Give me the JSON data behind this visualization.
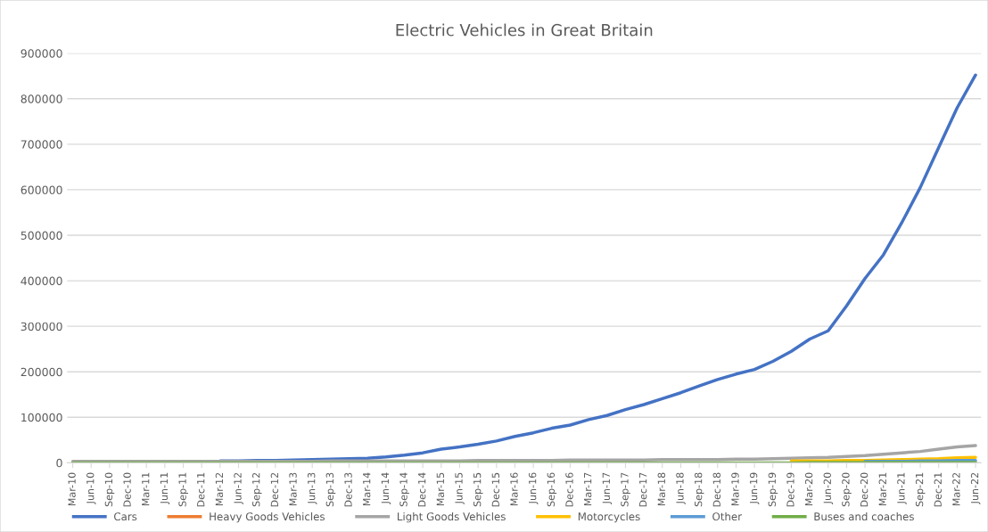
{
  "chart_data": {
    "type": "line",
    "title": "Electric Vehicles in Great Britain",
    "categories": [
      "Mar-10",
      "Jun-10",
      "Sep-10",
      "Dec-10",
      "Mar-11",
      "Jun-11",
      "Sep-11",
      "Dec-11",
      "Mar-12",
      "Jun-12",
      "Sep-12",
      "Dec-12",
      "Mar-13",
      "Jun-13",
      "Sep-13",
      "Dec-13",
      "Mar-14",
      "Jun-14",
      "Sep-14",
      "Dec-14",
      "Mar-15",
      "Jun-15",
      "Sep-15",
      "Dec-15",
      "Mar-16",
      "Jun-16",
      "Sep-16",
      "Dec-16",
      "Mar-17",
      "Jun-17",
      "Sep-17",
      "Dec-17",
      "Mar-18",
      "Jun-18",
      "Sep-18",
      "Dec-18",
      "Mar-19",
      "Jun-19",
      "Sep-19",
      "Dec-19",
      "Mar-20",
      "Jun-20",
      "Sep-20",
      "Dec-20",
      "Mar-21",
      "Jun-21",
      "Sep-21",
      "Dec-21",
      "Mar-22",
      "Jun-22"
    ],
    "series": [
      {
        "name": "Cars",
        "color": "#4472c4",
        "values": [
          null,
          null,
          null,
          null,
          null,
          null,
          null,
          null,
          4000,
          4000,
          5000,
          5000,
          6000,
          7000,
          8000,
          9000,
          10000,
          13000,
          17000,
          22000,
          30000,
          35000,
          41000,
          48000,
          58000,
          66000,
          76000,
          83000,
          95000,
          104000,
          117000,
          128000,
          141000,
          154000,
          169000,
          183000,
          195000,
          205000,
          223000,
          245000,
          272000,
          290000,
          345000,
          405000,
          457000,
          528000,
          605000,
          693000,
          780000,
          852000
        ]
      },
      {
        "name": "Heavy Goods Vehicles",
        "color": "#ed7d31",
        "values": [
          null,
          null,
          null,
          null,
          null,
          null,
          null,
          null,
          null,
          null,
          null,
          null,
          null,
          null,
          null,
          null,
          null,
          null,
          null,
          null,
          null,
          null,
          null,
          null,
          null,
          null,
          null,
          null,
          null,
          null,
          null,
          null,
          null,
          null,
          null,
          null,
          null,
          null,
          null,
          null,
          null,
          null,
          null,
          null,
          null,
          null,
          null,
          null,
          null,
          null
        ]
      },
      {
        "name": "Light Goods Vehicles",
        "color": "#a5a5a5",
        "values": [
          3000,
          3000,
          3000,
          3000,
          3000,
          3000,
          3000,
          3000,
          3000,
          3000,
          3000,
          3000,
          3000,
          3000,
          4000,
          4000,
          4000,
          4000,
          4000,
          4000,
          4000,
          4000,
          5000,
          5000,
          5000,
          5000,
          5000,
          6000,
          6000,
          6000,
          6000,
          6000,
          7000,
          7000,
          7000,
          7000,
          8000,
          8000,
          9000,
          10000,
          11000,
          12000,
          14000,
          16000,
          19000,
          22000,
          25000,
          30000,
          35000,
          38000
        ]
      },
      {
        "name": "Motorcycles",
        "color": "#ffc000",
        "values": [
          null,
          null,
          null,
          null,
          null,
          null,
          null,
          null,
          null,
          null,
          null,
          null,
          null,
          null,
          null,
          null,
          null,
          null,
          null,
          null,
          null,
          null,
          null,
          null,
          null,
          null,
          null,
          null,
          null,
          null,
          null,
          null,
          null,
          null,
          null,
          null,
          null,
          null,
          null,
          4000,
          4000,
          4000,
          5000,
          5000,
          6000,
          7000,
          8000,
          9000,
          11000,
          12000
        ]
      },
      {
        "name": "Other",
        "color": "#5b9bd5",
        "values": [
          null,
          null,
          null,
          null,
          null,
          null,
          null,
          null,
          null,
          null,
          null,
          null,
          null,
          null,
          null,
          null,
          null,
          null,
          null,
          null,
          null,
          null,
          null,
          null,
          null,
          null,
          null,
          null,
          null,
          null,
          null,
          null,
          null,
          null,
          null,
          null,
          null,
          null,
          null,
          null,
          null,
          null,
          null,
          3000,
          3000,
          3000,
          4000,
          4000,
          5000,
          5000
        ]
      },
      {
        "name": "Buses and coaches",
        "color": "#70ad47",
        "values": [
          0,
          0,
          0,
          0,
          0,
          0,
          0,
          0,
          0,
          0,
          0,
          0,
          0,
          0,
          0,
          0,
          0,
          0,
          0,
          0,
          0,
          0,
          0,
          0,
          0,
          0,
          0,
          0,
          0,
          0,
          0,
          0,
          0,
          0,
          0,
          0,
          0,
          0,
          0,
          0,
          1000,
          1000,
          1000,
          1000,
          1000,
          1000,
          1000,
          1000,
          1000,
          1000
        ]
      }
    ],
    "ylim": [
      0,
      900000
    ],
    "yticks": [
      0,
      100000,
      200000,
      300000,
      400000,
      500000,
      600000,
      700000,
      800000,
      900000
    ],
    "grid": "y",
    "legend": "bottom",
    "marker": "none",
    "line_style": "solid"
  }
}
